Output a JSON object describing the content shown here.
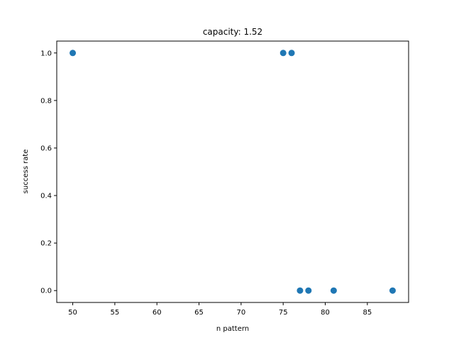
{
  "chart_data": {
    "type": "scatter",
    "title": "capacity: 1.52",
    "xlabel": "n pattern",
    "ylabel": "success rate",
    "xlim": [
      48.1,
      89.9
    ],
    "ylim": [
      -0.05,
      1.05
    ],
    "xticks": [
      50,
      55,
      60,
      65,
      70,
      75,
      80,
      85
    ],
    "yticks": [
      0.0,
      0.2,
      0.4,
      0.6,
      0.8,
      1.0
    ],
    "xtick_labels": [
      "50",
      "55",
      "60",
      "65",
      "70",
      "75",
      "80",
      "85"
    ],
    "ytick_labels": [
      "0.0",
      "0.2",
      "0.4",
      "0.6",
      "0.8",
      "1.0"
    ],
    "grid": false,
    "series": [
      {
        "color": "#1f77b4",
        "x": [
          50,
          75,
          76,
          77,
          78,
          81,
          88
        ],
        "y": [
          1.0,
          1.0,
          1.0,
          0.0,
          0.0,
          0.0,
          0.0
        ]
      }
    ]
  }
}
